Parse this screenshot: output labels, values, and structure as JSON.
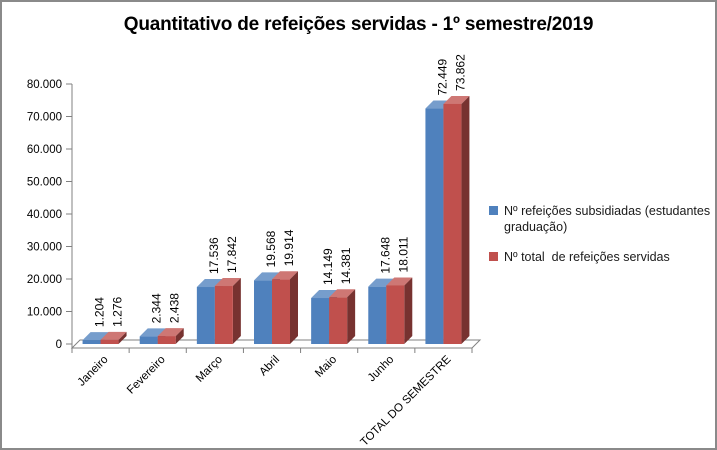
{
  "chart_data": {
    "type": "bar",
    "style": "3d-effect-clustered",
    "title": "Quantitativo de refeições servidas - 1º semestre/2019",
    "categories": [
      "Janeiro",
      "Fevereiro",
      "Março",
      "Abril",
      "Maio",
      "Junho",
      "TOTAL DO SEMESTRE"
    ],
    "series": [
      {
        "name": "Nº refeições subsidiadas (estudantes graduação)",
        "color": "#4F81BD",
        "values": [
          1204,
          2344,
          17536,
          19568,
          14149,
          17648,
          72449
        ],
        "labels": [
          "1.204",
          "2.344",
          "17.536",
          "19.568",
          "14.149",
          "17.648",
          "72.449"
        ]
      },
      {
        "name": "Nº total  de refeições servidas",
        "color": "#C0504D",
        "values": [
          1276,
          2438,
          17842,
          19914,
          14381,
          18011,
          73862
        ],
        "labels": [
          "1.276",
          "2.438",
          "17.842",
          "19.914",
          "14.381",
          "18.011",
          "73.862"
        ]
      }
    ],
    "y_axis": {
      "min": 0,
      "max": 80000,
      "step": 10000,
      "tick_labels": [
        "0",
        "10.000",
        "20.000",
        "30.000",
        "40.000",
        "50.000",
        "60.000",
        "70.000",
        "80.000"
      ]
    },
    "xlabel": "",
    "ylabel": "",
    "gridlines": false,
    "legend_position": "right",
    "data_label_rotation": -90,
    "category_label_rotation": -45,
    "axis_color": "#808080",
    "text_color": "#000000"
  }
}
